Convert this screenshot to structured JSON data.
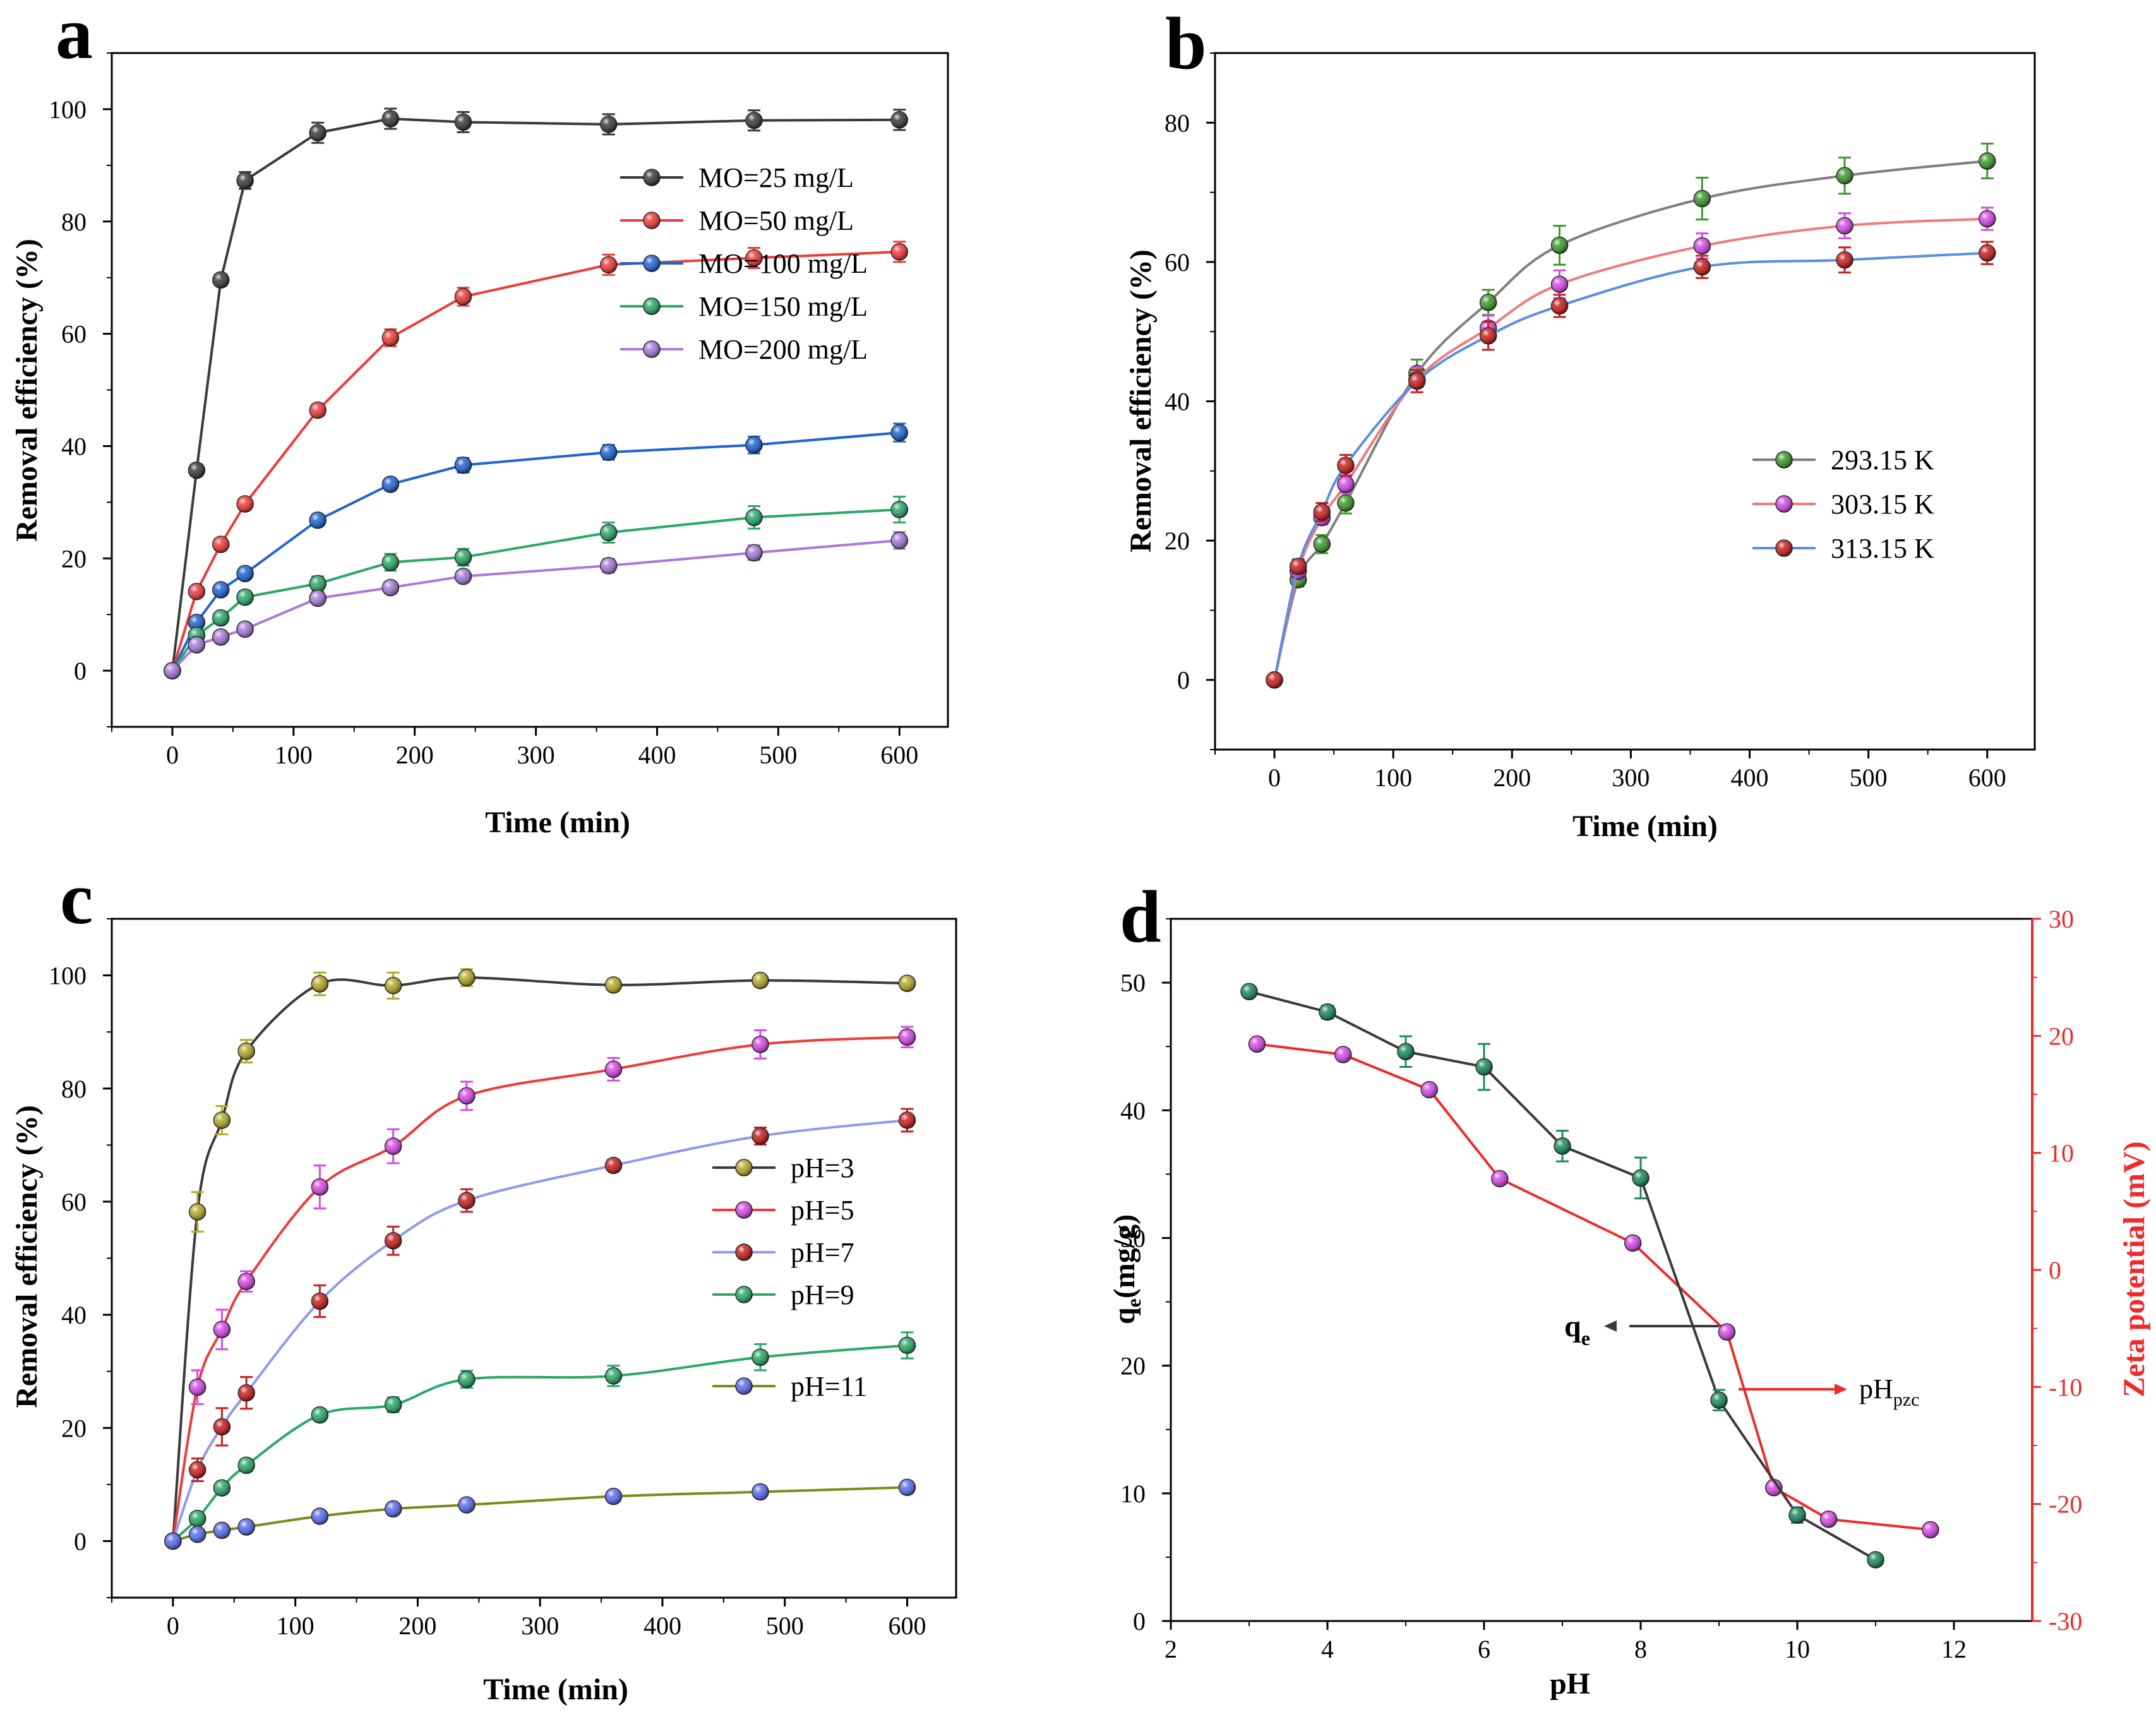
{
  "chart_data": [
    {
      "panel": "a",
      "type": "line",
      "xlabel": "Time (min)",
      "ylabel": "Removal efficiency (%)",
      "xlim": [
        -50,
        640
      ],
      "ylim": [
        -10,
        110
      ],
      "xticks": [
        0,
        100,
        200,
        300,
        400,
        500,
        600
      ],
      "yticks": [
        0,
        20,
        40,
        60,
        80,
        100
      ],
      "x": [
        0,
        20,
        40,
        60,
        120,
        180,
        240,
        360,
        480,
        600
      ],
      "legend_position": "right",
      "series": [
        {
          "name": "MO=25 mg/L",
          "color": "#3a3a3a",
          "values": [
            0,
            35.7,
            69.6,
            87.3,
            95.8,
            98.3,
            97.7,
            97.3,
            98.0,
            98.1
          ],
          "errors": [
            0.5,
            1.0,
            1.0,
            1.5,
            1.8,
            1.8,
            1.8,
            1.8,
            1.8,
            1.8
          ]
        },
        {
          "name": "MO=50 mg/L",
          "color": "#ee3a3a",
          "values": [
            0,
            14.1,
            22.5,
            29.7,
            46.4,
            59.3,
            66.6,
            72.3,
            73.5,
            74.6
          ],
          "errors": [
            0.5,
            0.8,
            1.0,
            1.0,
            1.0,
            1.5,
            1.6,
            1.8,
            1.8,
            1.8
          ]
        },
        {
          "name": "MO=100 mg/L",
          "color": "#1f63d4",
          "values": [
            0,
            8.6,
            14.4,
            17.3,
            26.8,
            33.2,
            36.6,
            38.9,
            40.2,
            42.4
          ],
          "errors": [
            0.5,
            0.6,
            0.8,
            1.0,
            1.0,
            1.0,
            1.3,
            1.3,
            1.5,
            1.6
          ]
        },
        {
          "name": "MO=150 mg/L",
          "color": "#2aa866",
          "values": [
            0,
            6.3,
            9.4,
            13.1,
            15.5,
            19.3,
            20.2,
            24.6,
            27.3,
            28.7
          ],
          "errors": [
            0.5,
            0.6,
            0.8,
            1.0,
            1.3,
            1.5,
            1.5,
            1.8,
            2.0,
            2.3
          ]
        },
        {
          "name": "MO=200 mg/L",
          "color": "#a77ad8",
          "values": [
            0,
            4.6,
            6.0,
            7.4,
            12.9,
            14.8,
            16.8,
            18.7,
            21.0,
            23.2
          ],
          "errors": [
            0.5,
            0.6,
            0.8,
            0.8,
            1.0,
            1.0,
            1.0,
            1.2,
            1.3,
            1.5
          ]
        }
      ]
    },
    {
      "panel": "b",
      "type": "line",
      "xlabel": "Time (min)",
      "ylabel": "Removal efficiency (%)",
      "xlim": [
        -50,
        640
      ],
      "ylim": [
        -10,
        90
      ],
      "xticks": [
        0,
        100,
        200,
        300,
        400,
        500,
        600
      ],
      "yticks": [
        0,
        20,
        40,
        60,
        80
      ],
      "x": [
        0,
        20,
        40,
        60,
        120,
        180,
        240,
        360,
        480,
        600
      ],
      "legend_position": "center-right",
      "series": [
        {
          "name": "293.15 K",
          "line_color": "#7f7f7f",
          "marker_color": "#3d9a2b",
          "values": [
            0,
            14.4,
            19.5,
            25.4,
            44.0,
            54.2,
            62.4,
            69.1,
            72.4,
            74.5
          ],
          "errors": [
            0.5,
            1.0,
            1.3,
            1.5,
            2.0,
            1.8,
            2.8,
            3.0,
            2.6,
            2.5
          ]
        },
        {
          "name": "303.15 K",
          "line_color": "#f07a7a",
          "marker_color": "#d64ae6",
          "values": [
            0,
            15.6,
            23.3,
            28.1,
            43.1,
            50.5,
            56.8,
            62.3,
            65.2,
            66.2
          ],
          "errors": [
            0.5,
            1.0,
            1.0,
            1.3,
            1.8,
            1.8,
            2.0,
            1.8,
            1.8,
            1.6
          ]
        },
        {
          "name": "313.15 K",
          "line_color": "#5a8ee0",
          "marker_color": "#c81e1e",
          "values": [
            0,
            16.3,
            24.1,
            30.8,
            42.9,
            49.4,
            53.7,
            59.3,
            60.3,
            61.3
          ],
          "errors": [
            0.5,
            1.0,
            1.3,
            1.5,
            1.6,
            2.0,
            1.6,
            1.6,
            1.8,
            1.6
          ]
        }
      ]
    },
    {
      "panel": "c",
      "type": "line",
      "xlabel": "Time (min)",
      "ylabel": "Removal efficiency (%)",
      "xlim": [
        -50,
        640
      ],
      "ylim": [
        -10,
        110
      ],
      "xticks": [
        0,
        100,
        200,
        300,
        400,
        500,
        600
      ],
      "yticks": [
        0,
        20,
        40,
        60,
        80,
        100
      ],
      "x": [
        0,
        20,
        40,
        60,
        120,
        180,
        240,
        360,
        480,
        600
      ],
      "legend_position": "right",
      "series": [
        {
          "name": "pH=3",
          "line_color": "#3a3a3a",
          "marker_color": "#b5a82a",
          "values": [
            0,
            58.2,
            74.4,
            86.6,
            98.5,
            98.2,
            99.6,
            98.3,
            99.1,
            98.6
          ],
          "errors": [
            0.5,
            3.5,
            2.5,
            2.0,
            2.0,
            2.3,
            1.5,
            1.0,
            1.0,
            1.0
          ]
        },
        {
          "name": "pH=5",
          "line_color": "#ee3a3a",
          "marker_color": "#d64ae6",
          "values": [
            0,
            27.2,
            37.4,
            45.9,
            62.6,
            69.8,
            78.7,
            83.4,
            87.8,
            89.1
          ],
          "errors": [
            0.5,
            3.0,
            3.5,
            1.8,
            3.8,
            3.0,
            2.5,
            2.0,
            2.5,
            1.8
          ]
        },
        {
          "name": "pH=7",
          "line_color": "#8f99ee",
          "marker_color": "#c81e1e",
          "values": [
            0,
            12.6,
            20.2,
            26.2,
            42.4,
            53.1,
            60.2,
            66.4,
            71.6,
            74.4
          ],
          "errors": [
            0.5,
            2.0,
            3.3,
            2.8,
            2.8,
            2.5,
            2.0,
            1.0,
            1.5,
            2.0
          ]
        },
        {
          "name": "pH=9",
          "line_color": "#2aa866",
          "marker_color": "#2aa866",
          "values": [
            0,
            4.0,
            9.4,
            13.4,
            22.3,
            24.1,
            28.6,
            29.2,
            32.5,
            34.6
          ],
          "errors": [
            0.5,
            1.0,
            1.0,
            1.0,
            1.0,
            1.3,
            1.5,
            1.8,
            2.3,
            2.3
          ]
        },
        {
          "name": "pH=11",
          "line_color": "#7d8a1a",
          "marker_color": "#5a6cf0",
          "values": [
            0,
            1.2,
            1.9,
            2.5,
            4.4,
            5.7,
            6.4,
            7.9,
            8.7,
            9.5
          ],
          "errors": [
            0.3,
            0.5,
            0.5,
            0.5,
            0.6,
            0.6,
            0.6,
            0.6,
            0.8,
            1.0
          ]
        }
      ]
    },
    {
      "panel": "d",
      "type": "line",
      "xlabel": "pH",
      "ylabel": "q_e(mg/g)",
      "ylabel_right": "Zeta potential (mV)",
      "xlim": [
        2,
        13
      ],
      "ylim": [
        0,
        55
      ],
      "ylim_right": [
        -30,
        30
      ],
      "xticks": [
        2,
        4,
        6,
        8,
        10,
        12
      ],
      "yticks": [
        0,
        10,
        20,
        30,
        40,
        50
      ],
      "yticks_right": [
        -30,
        -20,
        -10,
        0,
        10,
        20,
        30
      ],
      "series": [
        {
          "name": "qe",
          "axis": "left",
          "line_color": "#3a3a3a",
          "marker_color": "#1a8a5a",
          "x": [
            3,
            4,
            5,
            6,
            7,
            8,
            9,
            10,
            11
          ],
          "values": [
            49.3,
            47.7,
            44.6,
            43.4,
            37.2,
            34.7,
            17.3,
            8.3,
            4.8
          ],
          "errors": [
            0.3,
            0.5,
            1.2,
            1.8,
            1.2,
            1.6,
            0.8,
            0.6,
            0.3
          ]
        },
        {
          "name": "Zeta potential",
          "axis": "right",
          "line_color": "#ee2a2a",
          "marker_color": "#d64ae6",
          "x": [
            3.1,
            4.2,
            5.3,
            6.2,
            7.9,
            9.1,
            9.7,
            10.4,
            11.7
          ],
          "values": [
            19.3,
            18.4,
            15.4,
            7.8,
            2.3,
            -5.3,
            -18.6,
            -21.3,
            -22.2
          ]
        }
      ],
      "annotations": [
        {
          "text": "q",
          "sub": "e"
        },
        {
          "text": "pH",
          "sub": "pzc"
        }
      ]
    }
  ]
}
